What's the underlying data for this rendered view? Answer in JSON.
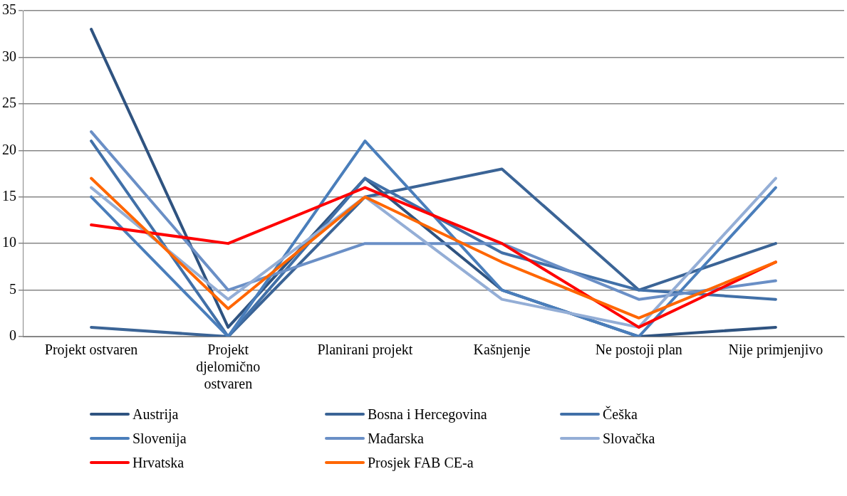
{
  "chart_data": {
    "type": "line",
    "categories": [
      "Projekt ostvaren",
      "Projekt djelomično ostvaren",
      "Planirani projekt",
      "Kašnjenje",
      "Ne postoji plan",
      "Nije primjenjivo"
    ],
    "series": [
      {
        "name": "Austrija",
        "color": "#2f5380",
        "values": [
          33,
          1,
          17,
          5,
          0,
          1
        ]
      },
      {
        "name": "Bosna i Hercegovina",
        "color": "#3b6496",
        "values": [
          1,
          0,
          15,
          18,
          5,
          10
        ]
      },
      {
        "name": "Češka",
        "color": "#4170a8",
        "values": [
          21,
          0,
          17,
          9,
          5,
          4
        ]
      },
      {
        "name": "Slovenija",
        "color": "#4a7ebb",
        "values": [
          15,
          0,
          21,
          5,
          0,
          16
        ]
      },
      {
        "name": "Mađarska",
        "color": "#6a8fc6",
        "values": [
          22,
          5,
          10,
          10,
          4,
          6
        ]
      },
      {
        "name": "Slovačka",
        "color": "#94aed6",
        "values": [
          16,
          4,
          15,
          4,
          1,
          17
        ]
      },
      {
        "name": "Hrvatska",
        "color": "#ff0000",
        "values": [
          12,
          10,
          16,
          10,
          1,
          8
        ]
      },
      {
        "name": "Prosjek FAB CE-a",
        "color": "#ff6600",
        "values": [
          17,
          3,
          15,
          8,
          2,
          8
        ]
      }
    ],
    "ylim": [
      0,
      35
    ],
    "yticks": [
      0,
      5,
      10,
      15,
      20,
      25,
      30,
      35
    ],
    "grid": "y",
    "legend": "bottom",
    "marker": "none",
    "line_style": "solid"
  }
}
